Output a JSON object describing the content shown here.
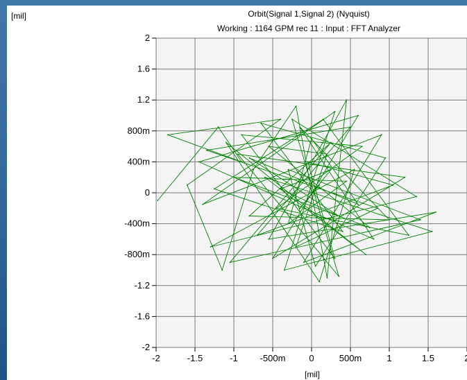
{
  "chart_data": {
    "type": "line",
    "title": "Orbit(Signal 1,Signal 2) (Nyquist)",
    "subtitle": "Working : 1164 GPM rec 11 : Input : FFT Analyzer",
    "xlabel": "[mil]",
    "ylabel": "[mil]",
    "xlim": [
      -2,
      2
    ],
    "ylim": [
      -2,
      2
    ],
    "grid": true,
    "x_ticks": [
      {
        "value": -2,
        "label": "-2"
      },
      {
        "value": -1.5,
        "label": "-1.5"
      },
      {
        "value": -1,
        "label": "-1"
      },
      {
        "value": -0.5,
        "label": "-500m"
      },
      {
        "value": 0,
        "label": "0"
      },
      {
        "value": 0.5,
        "label": "500m"
      },
      {
        "value": 1,
        "label": "1"
      },
      {
        "value": 1.5,
        "label": "1.5"
      },
      {
        "value": 2,
        "label": "2"
      }
    ],
    "y_ticks": [
      {
        "value": 2,
        "label": "2"
      },
      {
        "value": 1.6,
        "label": "1.6"
      },
      {
        "value": 1.2,
        "label": "1.2"
      },
      {
        "value": 0.8,
        "label": "800m"
      },
      {
        "value": 0.4,
        "label": "400m"
      },
      {
        "value": 0,
        "label": "0"
      },
      {
        "value": -0.4,
        "label": "-400m"
      },
      {
        "value": -0.8,
        "label": "-800m"
      },
      {
        "value": -1.2,
        "label": "-1.2"
      },
      {
        "value": -1.6,
        "label": "-1.6"
      },
      {
        "value": -2,
        "label": "-2"
      }
    ],
    "series": [
      {
        "color": "#008000",
        "points": [
          [
            -1.98,
            -0.1
          ],
          [
            -1.2,
            0.85
          ],
          [
            -0.9,
            0.4
          ],
          [
            -1.85,
            0.75
          ],
          [
            -0.4,
            0.95
          ],
          [
            -1.6,
            0.1
          ],
          [
            -1.15,
            -1.0
          ],
          [
            -0.75,
            0.3
          ],
          [
            -0.2,
            1.12
          ],
          [
            0.2,
            -1.1
          ],
          [
            0.45,
            1.2
          ],
          [
            -0.55,
            -0.6
          ],
          [
            1.6,
            -0.25
          ],
          [
            -0.1,
            -0.9
          ],
          [
            0.9,
            0.75
          ],
          [
            -1.4,
            -0.15
          ],
          [
            0.3,
            1.05
          ],
          [
            -0.35,
            -1.0
          ],
          [
            1.55,
            -0.5
          ],
          [
            -0.6,
            0.2
          ],
          [
            0.7,
            -0.8
          ],
          [
            -1.1,
            0.65
          ],
          [
            0.1,
            -1.15
          ],
          [
            0.55,
            0.3
          ],
          [
            -1.3,
            -0.7
          ],
          [
            1.35,
            -0.05
          ],
          [
            -0.25,
            0.95
          ],
          [
            0.35,
            -1.08
          ],
          [
            -0.95,
            0.5
          ],
          [
            1.2,
            0.2
          ],
          [
            -0.5,
            -0.85
          ],
          [
            0.6,
            1.0
          ],
          [
            -1.45,
            0.4
          ],
          [
            0.8,
            -0.6
          ],
          [
            -0.15,
            0.85
          ],
          [
            1.0,
            -0.35
          ],
          [
            -0.8,
            -0.3
          ],
          [
            0.25,
            0.65
          ],
          [
            -1.05,
            -0.9
          ],
          [
            1.4,
            -0.35
          ],
          [
            -0.3,
            0.3
          ],
          [
            0.05,
            -0.95
          ],
          [
            0.95,
            0.45
          ],
          [
            -0.65,
            0.9
          ],
          [
            0.4,
            -0.5
          ],
          [
            -1.25,
            0.05
          ],
          [
            0.15,
            0.95
          ],
          [
            1.25,
            -0.55
          ],
          [
            -0.45,
            -0.2
          ],
          [
            0.65,
            0.6
          ],
          [
            -0.9,
            0.75
          ],
          [
            0.3,
            -0.85
          ],
          [
            -0.05,
            0.4
          ],
          [
            1.05,
            0.1
          ],
          [
            -0.7,
            -0.55
          ],
          [
            0.5,
            0.85
          ],
          [
            -1.35,
            0.55
          ],
          [
            0.85,
            -0.2
          ],
          [
            -0.2,
            -0.7
          ],
          [
            0.2,
            0.5
          ],
          [
            -0.55,
            0.6
          ],
          [
            0.75,
            -0.45
          ],
          [
            -1.0,
            0.2
          ],
          [
            0.45,
            0.15
          ],
          [
            -0.3,
            -0.4
          ],
          [
            0.0,
            0.7
          ],
          [
            0.6,
            -0.15
          ],
          [
            -0.8,
            0.45
          ],
          [
            0.35,
            -0.3
          ],
          [
            -0.4,
            0.05
          ],
          [
            0.25,
            0.3
          ],
          [
            -0.15,
            -0.2
          ],
          [
            0.1,
            0.1
          ]
        ]
      }
    ]
  }
}
